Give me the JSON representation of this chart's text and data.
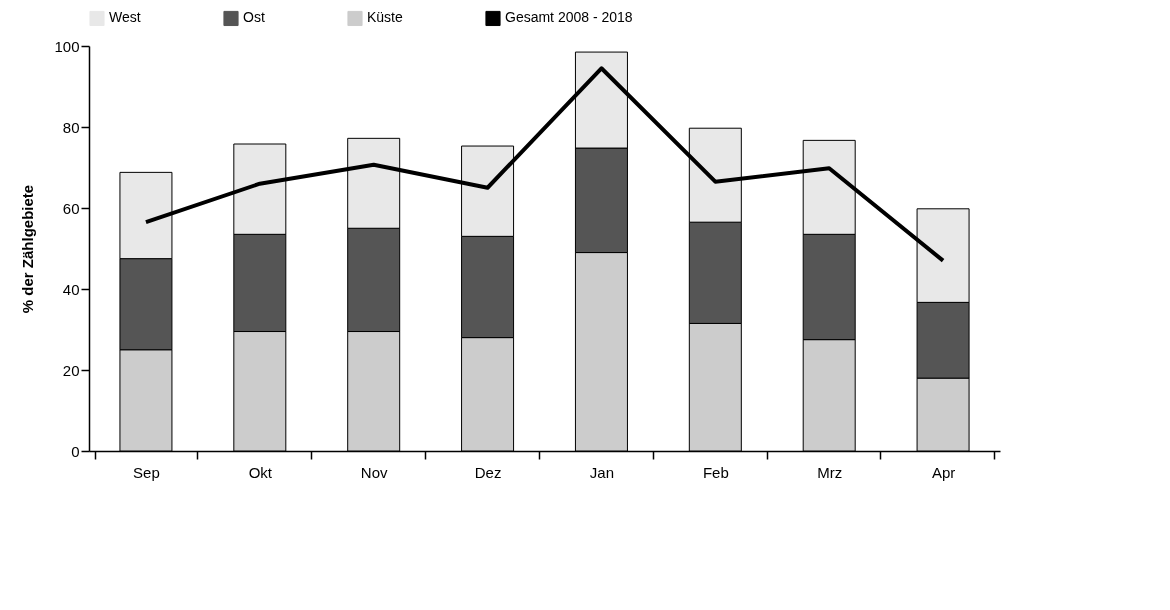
{
  "chart_data": {
    "type": "bar",
    "stacked": true,
    "ylabel": "% der Zählgebiete",
    "categories": [
      "Sep",
      "Okt",
      "Nov",
      "Dez",
      "Jan",
      "Feb",
      "Mrz",
      "Apr"
    ],
    "series": [
      {
        "name": "Küste",
        "color": "#cccccc",
        "values": [
          25,
          29.5,
          29.5,
          28,
          49,
          31.5,
          27.5,
          18
        ]
      },
      {
        "name": "Ost",
        "color": "#555555",
        "values": [
          22.5,
          24,
          25.5,
          25,
          25.8,
          25,
          26,
          18.7
        ]
      },
      {
        "name": "West",
        "color": "#e8e8e8",
        "values": [
          21.3,
          22.3,
          22.2,
          22.3,
          23.7,
          23.2,
          23.2,
          23.1
        ]
      },
      {
        "name": "Gesamt 2008 - 2018",
        "type": "line",
        "color": "#000000",
        "values": [
          56.5,
          66,
          70.7,
          65,
          94.5,
          66.5,
          69.8,
          47
        ]
      }
    ],
    "ylim": [
      0,
      100
    ],
    "yticks": [
      0,
      20,
      40,
      60,
      80,
      100
    ],
    "grid": false,
    "legend": "top",
    "marker": "none",
    "line_style": "solid"
  }
}
